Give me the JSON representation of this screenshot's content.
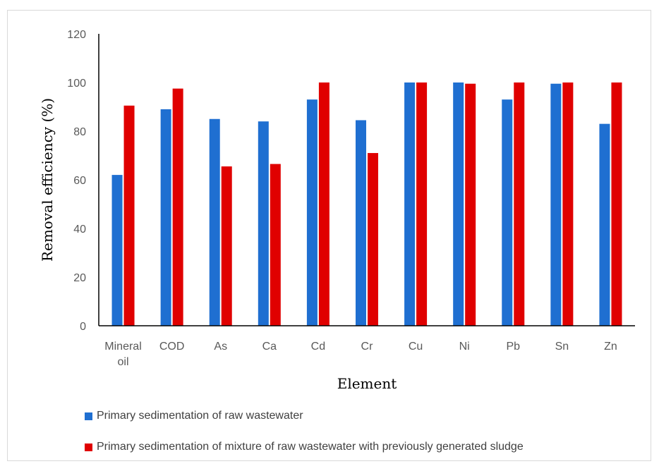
{
  "chart_data": {
    "type": "bar",
    "title": "",
    "xlabel": "Element",
    "ylabel": "Removal efficiency (%)",
    "ylim": [
      0,
      120
    ],
    "yticks": [
      "0",
      "20",
      "40",
      "60",
      "80",
      "100",
      "120"
    ],
    "categories": [
      "Mineral oil",
      "COD",
      "As",
      "Ca",
      "Cd",
      "Cr",
      "Cu",
      "Ni",
      "Pb",
      "Sn",
      "Zn"
    ],
    "series": [
      {
        "name": "Primary sedimentation of raw wastewater",
        "color": "#1f6fd1",
        "values": [
          62,
          89,
          85,
          84,
          93,
          84.5,
          100,
          100,
          93,
          99.5,
          83
        ]
      },
      {
        "name": "Primary sedimentation of mixture of raw wastewater with previously generated sludge",
        "color": "#e00000",
        "values": [
          90.5,
          97.5,
          65.5,
          66.5,
          100,
          71,
          100,
          99.5,
          100,
          100,
          100
        ]
      }
    ],
    "grid": false,
    "legend_position": "bottom-left"
  }
}
